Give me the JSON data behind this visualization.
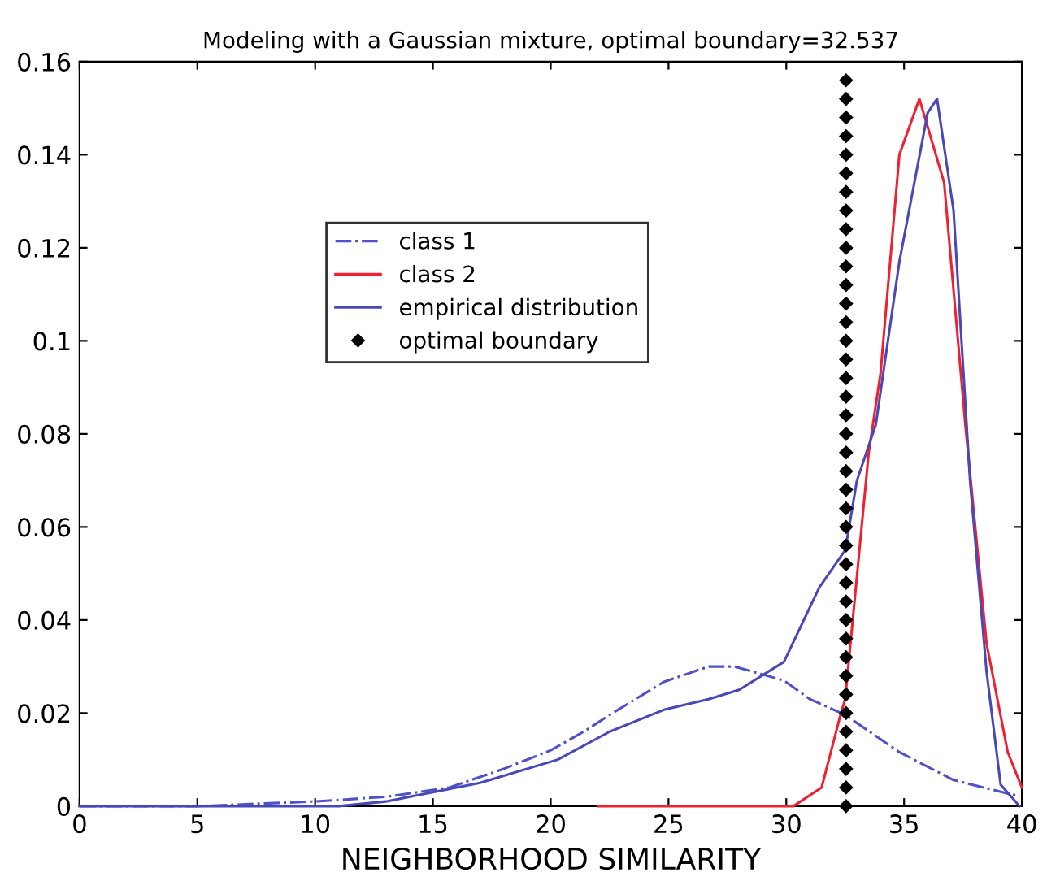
{
  "chart_data": {
    "type": "line",
    "title": "Modeling with a Gaussian mixture, optimal boundary=32.537",
    "xlabel": "NEIGHBORHOOD SIMILARITY",
    "xlim": [
      0,
      40
    ],
    "xticks": [
      0,
      5,
      10,
      15,
      20,
      25,
      30,
      35,
      40
    ],
    "ylim": [
      0,
      0.16
    ],
    "yticks": [
      0,
      0.02,
      0.04,
      0.06,
      0.08,
      0.1,
      0.12,
      0.14,
      0.16
    ],
    "grid": false,
    "legend": "center left",
    "series": [
      {
        "name": "class 1",
        "color": "#5050c8",
        "line_style": "dashdot",
        "x": [
          0,
          5,
          10,
          13,
          15.7,
          18,
          20,
          21.4,
          22.5,
          24.8,
          26.7,
          27.8,
          29.9,
          31,
          32.5,
          34.8,
          37.1,
          39.9
        ],
        "values": [
          0,
          0,
          0.001,
          0.002,
          0.004,
          0.008,
          0.012,
          0.016,
          0.0196,
          0.0267,
          0.03,
          0.03,
          0.027,
          0.023,
          0.0196,
          0.0116,
          0.0056,
          0.0021
        ]
      },
      {
        "name": "class 2",
        "color": "#f02030",
        "line_style": "solid",
        "x": [
          22,
          30.3,
          31.5,
          32.3,
          32.5,
          33.5,
          34.0,
          34.8,
          35.65,
          36.7,
          37.6,
          38.5,
          39.4,
          40
        ],
        "values": [
          0,
          0,
          0.004,
          0.0196,
          0.023,
          0.076,
          0.093,
          0.14,
          0.152,
          0.134,
          0.082,
          0.035,
          0.0116,
          0.004
        ]
      },
      {
        "name": "empirical distribution",
        "color": "#4848b8",
        "line_style": "solid",
        "x": [
          0,
          11,
          13,
          15,
          17,
          20.3,
          22.5,
          24.8,
          26.7,
          28.0,
          29.9,
          31.4,
          32.5,
          33.0,
          33.8,
          34.8,
          36.0,
          36.4,
          37.1,
          37.8,
          38.5,
          39.1,
          39.9
        ],
        "values": [
          0,
          0,
          0.001,
          0.003,
          0.005,
          0.01,
          0.016,
          0.0207,
          0.023,
          0.025,
          0.031,
          0.047,
          0.055,
          0.07,
          0.082,
          0.117,
          0.149,
          0.152,
          0.128,
          0.07,
          0.029,
          0.0046,
          0
        ]
      },
      {
        "name": "optimal boundary",
        "type": "scatter",
        "marker": "diamond",
        "color": "#000000",
        "x": [
          32.537,
          32.537,
          32.537,
          32.537,
          32.537,
          32.537,
          32.537,
          32.537,
          32.537,
          32.537,
          32.537,
          32.537,
          32.537,
          32.537,
          32.537,
          32.537,
          32.537,
          32.537,
          32.537,
          32.537,
          32.537,
          32.537,
          32.537,
          32.537,
          32.537,
          32.537,
          32.537,
          32.537,
          32.537,
          32.537,
          32.537,
          32.537,
          32.537,
          32.537,
          32.537,
          32.537,
          32.537,
          32.537,
          32.537,
          32.537
        ],
        "values": [
          0,
          0.004,
          0.008,
          0.012,
          0.016,
          0.02,
          0.024,
          0.028,
          0.032,
          0.036,
          0.04,
          0.044,
          0.048,
          0.052,
          0.056,
          0.06,
          0.064,
          0.068,
          0.072,
          0.076,
          0.08,
          0.084,
          0.088,
          0.092,
          0.096,
          0.1,
          0.104,
          0.108,
          0.112,
          0.116,
          0.12,
          0.124,
          0.128,
          0.132,
          0.136,
          0.14,
          0.144,
          0.148,
          0.152,
          0.156
        ]
      }
    ]
  }
}
